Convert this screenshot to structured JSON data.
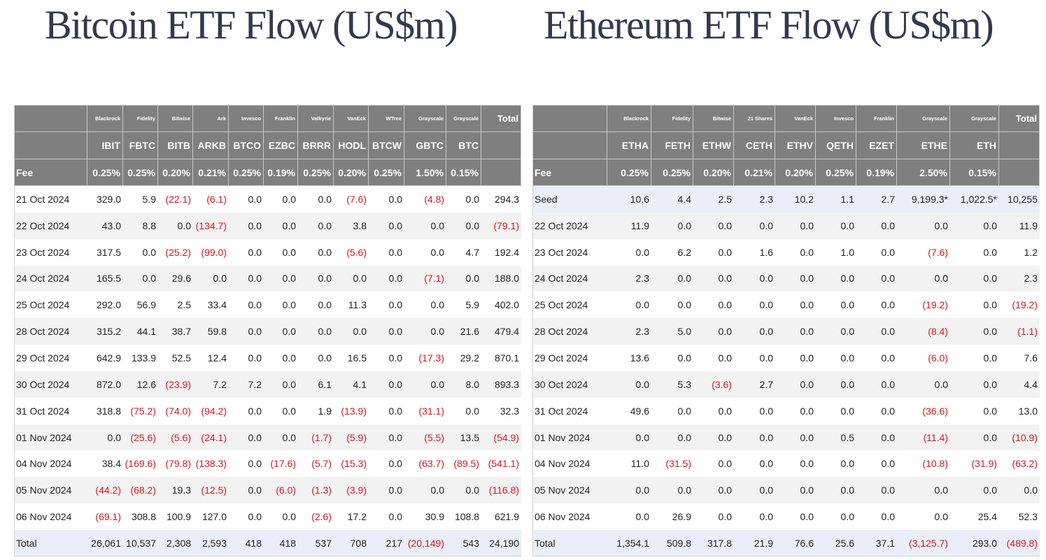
{
  "tables": [
    {
      "title": "Bitcoin ETF Flow (US$m)",
      "providers": [
        "Blackrock",
        "Fidelity",
        "Bitwise",
        "Ark",
        "Invesco",
        "Franklin",
        "Valkyrie",
        "VanEck",
        "WTree",
        "Grayscale",
        "Grayscale"
      ],
      "total_label": "Total",
      "tickers": [
        "IBIT",
        "FBTC",
        "BITB",
        "ARKB",
        "BTCO",
        "EZBC",
        "BRRR",
        "HODL",
        "BTCW",
        "GBTC",
        "BTC"
      ],
      "fee_label": "Fee",
      "fees": [
        "0.25%",
        "0.25%",
        "0.20%",
        "0.21%",
        "0.25%",
        "0.19%",
        "0.25%",
        "0.20%",
        "0.25%",
        "1.50%",
        "0.15%"
      ],
      "rows": [
        {
          "label": "21 Oct 2024",
          "values": [
            "329.0",
            "5.9",
            "(22.1)",
            "(6.1)",
            "0.0",
            "0.0",
            "0.0",
            "(7.6)",
            "0.0",
            "(4.8)",
            "0.0",
            "294.3"
          ]
        },
        {
          "label": "22 Oct 2024",
          "values": [
            "43.0",
            "8.8",
            "0.0",
            "(134.7)",
            "0.0",
            "0.0",
            "0.0",
            "3.8",
            "0.0",
            "0.0",
            "0.0",
            "(79.1)"
          ]
        },
        {
          "label": "23 Oct 2024",
          "values": [
            "317.5",
            "0.0",
            "(25.2)",
            "(99.0)",
            "0.0",
            "0.0",
            "0.0",
            "(5.6)",
            "0.0",
            "0.0",
            "4.7",
            "192.4"
          ]
        },
        {
          "label": "24 Oct 2024",
          "values": [
            "165.5",
            "0.0",
            "29.6",
            "0.0",
            "0.0",
            "0.0",
            "0.0",
            "0.0",
            "0.0",
            "(7.1)",
            "0.0",
            "188.0"
          ]
        },
        {
          "label": "25 Oct 2024",
          "values": [
            "292.0",
            "56.9",
            "2.5",
            "33.4",
            "0.0",
            "0.0",
            "0.0",
            "11.3",
            "0.0",
            "0.0",
            "5.9",
            "402.0"
          ]
        },
        {
          "label": "28 Oct 2024",
          "values": [
            "315.2",
            "44.1",
            "38.7",
            "59.8",
            "0.0",
            "0.0",
            "0.0",
            "0.0",
            "0.0",
            "0.0",
            "21.6",
            "479.4"
          ]
        },
        {
          "label": "29 Oct 2024",
          "values": [
            "642.9",
            "133.9",
            "52.5",
            "12.4",
            "0.0",
            "0.0",
            "0.0",
            "16.5",
            "0.0",
            "(17.3)",
            "29.2",
            "870.1"
          ]
        },
        {
          "label": "30 Oct 2024",
          "values": [
            "872.0",
            "12.6",
            "(23.9)",
            "7.2",
            "7.2",
            "0.0",
            "6.1",
            "4.1",
            "0.0",
            "0.0",
            "8.0",
            "893.3"
          ]
        },
        {
          "label": "31 Oct 2024",
          "values": [
            "318.8",
            "(75.2)",
            "(74.0)",
            "(94.2)",
            "0.0",
            "0.0",
            "1.9",
            "(13.9)",
            "0.0",
            "(31.1)",
            "0.0",
            "32.3"
          ]
        },
        {
          "label": "01 Nov 2024",
          "values": [
            "0.0",
            "(25.6)",
            "(5.6)",
            "(24.1)",
            "0.0",
            "0.0",
            "(1.7)",
            "(5.9)",
            "0.0",
            "(5.5)",
            "13.5",
            "(54.9)"
          ]
        },
        {
          "label": "04 Nov 2024",
          "values": [
            "38.4",
            "(169.6)",
            "(79.8)",
            "(138.3)",
            "0.0",
            "(17.6)",
            "(5.7)",
            "(15.3)",
            "0.0",
            "(63.7)",
            "(89.5)",
            "(541.1)"
          ]
        },
        {
          "label": "05 Nov 2024",
          "values": [
            "(44.2)",
            "(68.2)",
            "19.3",
            "(12.5)",
            "0.0",
            "(6.0)",
            "(1.3)",
            "(3.9)",
            "0.0",
            "0.0",
            "0.0",
            "(116.8)"
          ]
        },
        {
          "label": "06 Nov 2024",
          "values": [
            "(69.1)",
            "308.8",
            "100.9",
            "127.0",
            "0.0",
            "0.0",
            "(2.6)",
            "17.2",
            "0.0",
            "30.9",
            "108.8",
            "621.9"
          ]
        }
      ],
      "total_row": {
        "label": "Total",
        "values": [
          "26,061",
          "10,537",
          "2,308",
          "2,593",
          "418",
          "418",
          "537",
          "708",
          "217",
          "(20,149)",
          "543",
          "24,190"
        ]
      }
    },
    {
      "title": "Ethereum ETF Flow (US$m)",
      "providers": [
        "Blackrock",
        "Fidelity",
        "Bitwise",
        "21 Shares",
        "VanEck",
        "Invesco",
        "Franklin",
        "Grayscale",
        "Grayscale"
      ],
      "total_label": "Total",
      "tickers": [
        "ETHA",
        "FETH",
        "ETHW",
        "CETH",
        "ETHV",
        "QETH",
        "EZET",
        "ETHE",
        "ETH"
      ],
      "fee_label": "Fee",
      "fees": [
        "0.25%",
        "0.25%",
        "0.20%",
        "0.21%",
        "0.20%",
        "0.25%",
        "0.19%",
        "2.50%",
        "0.15%"
      ],
      "rows": [
        {
          "label": "Seed",
          "values": [
            "10.6",
            "4.4",
            "2.5",
            "2.3",
            "10.2",
            "1.1",
            "2.7",
            "9,199.3*",
            "1,022.5*",
            "10,255"
          ]
        },
        {
          "label": "22 Oct 2024",
          "values": [
            "11.9",
            "0.0",
            "0.0",
            "0.0",
            "0.0",
            "0.0",
            "0.0",
            "0.0",
            "0.0",
            "11.9"
          ]
        },
        {
          "label": "23 Oct 2024",
          "values": [
            "0.0",
            "6.2",
            "0.0",
            "1.6",
            "0.0",
            "1.0",
            "0.0",
            "(7.6)",
            "0.0",
            "1.2"
          ]
        },
        {
          "label": "24 Oct 2024",
          "values": [
            "2.3",
            "0.0",
            "0.0",
            "0.0",
            "0.0",
            "0.0",
            "0.0",
            "0.0",
            "0.0",
            "2.3"
          ]
        },
        {
          "label": "25 Oct 2024",
          "values": [
            "0.0",
            "0.0",
            "0.0",
            "0.0",
            "0.0",
            "0.0",
            "0.0",
            "(19.2)",
            "0.0",
            "(19.2)"
          ]
        },
        {
          "label": "28 Oct 2024",
          "values": [
            "2.3",
            "5.0",
            "0.0",
            "0.0",
            "0.0",
            "0.0",
            "0.0",
            "(8.4)",
            "0.0",
            "(1.1)"
          ]
        },
        {
          "label": "29 Oct 2024",
          "values": [
            "13.6",
            "0.0",
            "0.0",
            "0.0",
            "0.0",
            "0.0",
            "0.0",
            "(6.0)",
            "0.0",
            "7.6"
          ]
        },
        {
          "label": "30 Oct 2024",
          "values": [
            "0.0",
            "5.3",
            "(3.6)",
            "2.7",
            "0.0",
            "0.0",
            "0.0",
            "0.0",
            "0.0",
            "4.4"
          ]
        },
        {
          "label": "31 Oct 2024",
          "values": [
            "49.6",
            "0.0",
            "0.0",
            "0.0",
            "0.0",
            "0.0",
            "0.0",
            "(36.6)",
            "0.0",
            "13.0"
          ]
        },
        {
          "label": "01 Nov 2024",
          "values": [
            "0.0",
            "0.0",
            "0.0",
            "0.0",
            "0.0",
            "0.5",
            "0.0",
            "(11.4)",
            "0.0",
            "(10.9)"
          ]
        },
        {
          "label": "04 Nov 2024",
          "values": [
            "11.0",
            "(31.5)",
            "0.0",
            "0.0",
            "0.0",
            "0.0",
            "0.0",
            "(10.8)",
            "(31.9)",
            "(63.2)"
          ]
        },
        {
          "label": "05 Nov 2024",
          "values": [
            "0.0",
            "0.0",
            "0.0",
            "0.0",
            "0.0",
            "0.0",
            "0.0",
            "0.0",
            "0.0",
            "0.0"
          ]
        },
        {
          "label": "06 Nov 2024",
          "values": [
            "0.0",
            "26.9",
            "0.0",
            "0.0",
            "0.0",
            "0.0",
            "0.0",
            "0.0",
            "25.4",
            "52.3"
          ]
        }
      ],
      "total_row": {
        "label": "Total",
        "values": [
          "1,354.1",
          "509.8",
          "317.8",
          "21.9",
          "76.6",
          "25.6",
          "37.1",
          "(3,125.7)",
          "293.0",
          "(489.8)"
        ]
      }
    }
  ]
}
